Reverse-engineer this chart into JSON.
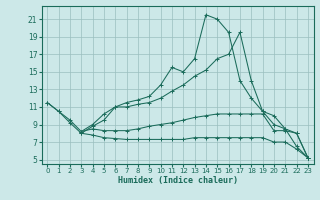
{
  "xlabel": "Humidex (Indice chaleur)",
  "bg_color": "#cce8e8",
  "grid_color": "#9bbfbf",
  "line_color": "#1a6b5a",
  "xlim": [
    -0.5,
    23.5
  ],
  "ylim": [
    4.5,
    22.5
  ],
  "yticks": [
    5,
    7,
    9,
    11,
    13,
    15,
    17,
    19,
    21
  ],
  "xticks": [
    0,
    1,
    2,
    3,
    4,
    5,
    6,
    7,
    8,
    9,
    10,
    11,
    12,
    13,
    14,
    15,
    16,
    17,
    18,
    19,
    20,
    21,
    22,
    23
  ],
  "lines": [
    {
      "x": [
        0,
        1,
        2,
        3,
        4,
        5,
        6,
        7,
        8,
        9,
        10,
        11,
        12,
        13,
        14,
        15,
        16,
        17,
        18,
        19,
        20,
        21,
        22,
        23
      ],
      "y": [
        11.5,
        10.5,
        9.5,
        8.2,
        9.0,
        10.2,
        11.0,
        11.5,
        11.8,
        12.2,
        13.5,
        15.5,
        15.0,
        16.5,
        21.5,
        21.0,
        19.5,
        14.0,
        12.0,
        10.5,
        9.0,
        8.5,
        6.5,
        5.2
      ]
    },
    {
      "x": [
        0,
        1,
        2,
        3,
        4,
        5,
        6,
        7,
        8,
        9,
        10,
        11,
        12,
        13,
        14,
        15,
        16,
        17,
        18,
        19,
        20,
        21,
        22,
        23
      ],
      "y": [
        11.5,
        10.5,
        9.2,
        8.0,
        8.8,
        9.5,
        11.0,
        11.0,
        11.3,
        11.5,
        12.0,
        12.8,
        13.5,
        14.5,
        15.2,
        16.5,
        17.0,
        19.5,
        14.0,
        10.5,
        10.0,
        8.5,
        8.0,
        5.2
      ]
    },
    {
      "x": [
        3,
        4,
        5,
        6,
        7,
        8,
        9,
        10,
        11,
        12,
        13,
        14,
        15,
        16,
        17,
        18,
        19,
        20,
        21,
        22,
        23
      ],
      "y": [
        8.2,
        8.5,
        8.3,
        8.3,
        8.3,
        8.5,
        8.8,
        9.0,
        9.2,
        9.5,
        9.8,
        10.0,
        10.2,
        10.2,
        10.2,
        10.2,
        10.2,
        8.3,
        8.3,
        8.0,
        5.2
      ]
    },
    {
      "x": [
        3,
        4,
        5,
        6,
        7,
        8,
        9,
        10,
        11,
        12,
        13,
        14,
        15,
        16,
        17,
        18,
        19,
        20,
        21,
        22,
        23
      ],
      "y": [
        8.0,
        7.8,
        7.5,
        7.4,
        7.3,
        7.3,
        7.3,
        7.3,
        7.3,
        7.3,
        7.5,
        7.5,
        7.5,
        7.5,
        7.5,
        7.5,
        7.5,
        7.0,
        7.0,
        6.2,
        5.2
      ]
    }
  ]
}
